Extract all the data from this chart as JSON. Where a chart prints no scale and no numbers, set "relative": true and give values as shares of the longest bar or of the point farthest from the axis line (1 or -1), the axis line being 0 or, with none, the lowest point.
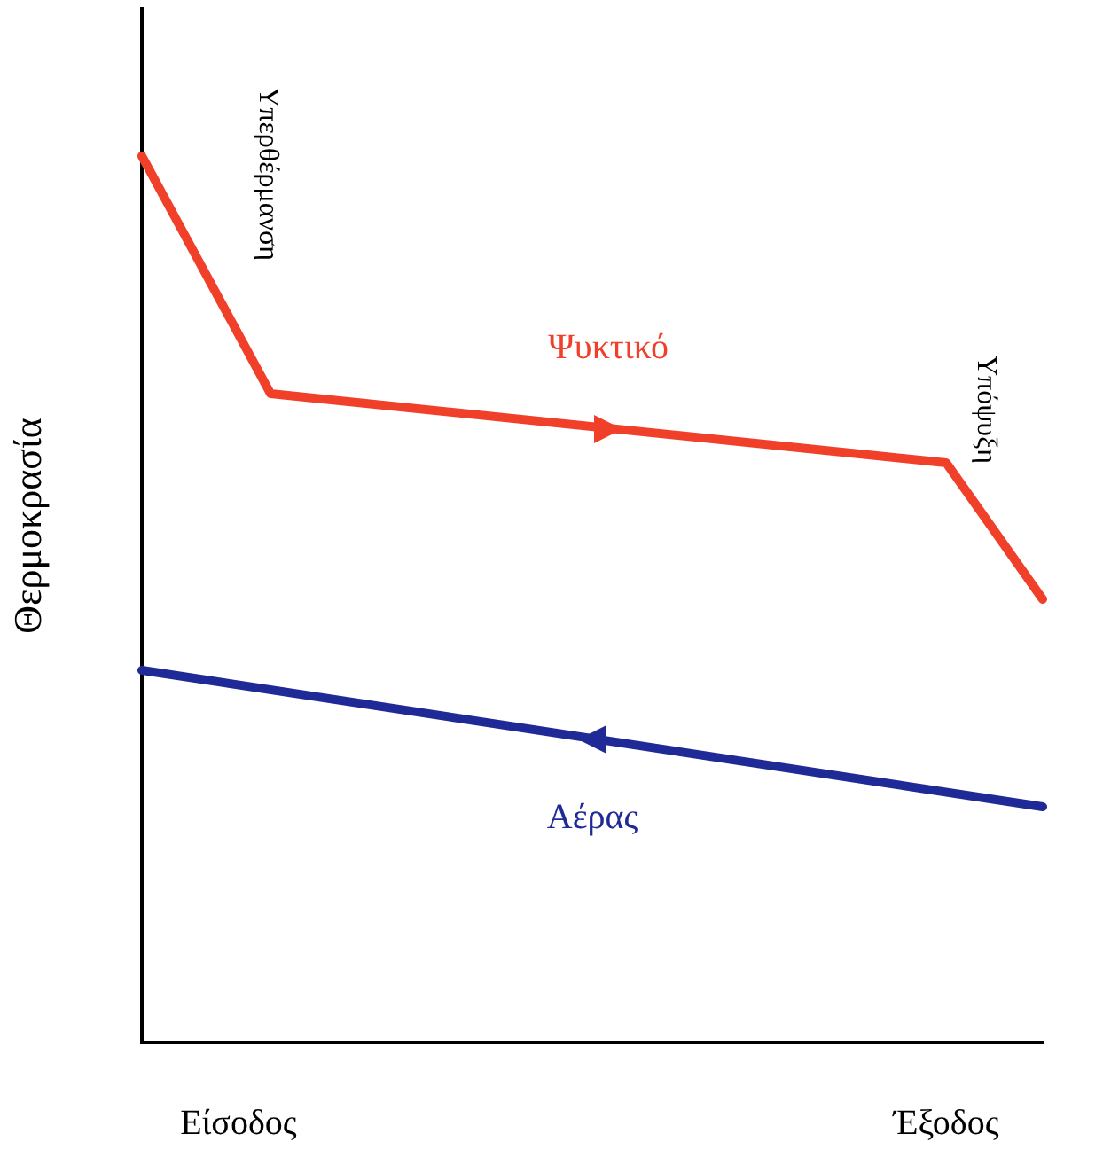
{
  "chart_data": {
    "type": "line",
    "relative": true,
    "ylabel": "Θερμοκρασία",
    "categories": [
      null,
      null,
      null,
      "Είσοδος",
      null,
      null,
      null,
      null,
      null,
      null,
      null,
      null,
      null,
      null,
      null,
      null,
      null,
      null,
      null,
      null,
      null,
      null,
      null,
      null,
      null,
      "Έξοδος",
      null,
      null,
      null
    ],
    "series": [
      {
        "name": "Ψυκτικό",
        "color": "#f0402a",
        "values": [
          1,
          null,
          null,
          null,
          0.732,
          null,
          null,
          null,
          null,
          null,
          null,
          null,
          null,
          null,
          null,
          null,
          null,
          null,
          null,
          null,
          null,
          null,
          null,
          null,
          null,
          0.654,
          null,
          null,
          0.5
        ]
      },
      {
        "name": "Αέρας",
        "color": "#1f2a96",
        "values": [
          0.42,
          null,
          null,
          null,
          null,
          null,
          null,
          null,
          null,
          null,
          null,
          null,
          null,
          null,
          null,
          null,
          null,
          null,
          null,
          null,
          null,
          null,
          null,
          null,
          null,
          null,
          null,
          null,
          0.266
        ]
      }
    ],
    "annotations": [
      "Υπερθέρμανση",
      "Υπόψυξη"
    ],
    "grid": false,
    "legend": false,
    "marker": "none",
    "line_style": "solid"
  }
}
